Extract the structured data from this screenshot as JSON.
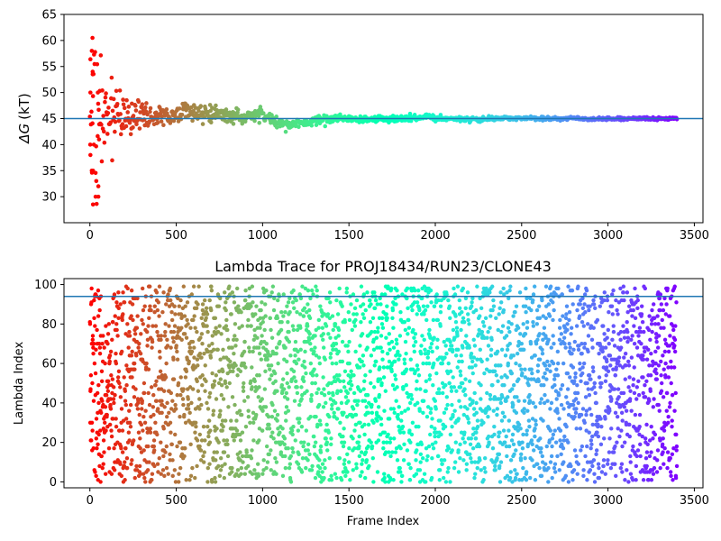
{
  "chart_data": [
    {
      "type": "scatter",
      "title": "",
      "xlabel": "",
      "ylabel_symbol": "ΔG",
      "ylabel_unit": "(kT)",
      "xlim": [
        -150,
        3550
      ],
      "ylim": [
        25,
        65
      ],
      "xticks": [
        "0",
        "500",
        "1000",
        "1500",
        "2000",
        "2500",
        "3000",
        "3500"
      ],
      "yticks": [
        "30",
        "35",
        "40",
        "45",
        "50",
        "55",
        "60",
        "65"
      ],
      "hline": 45.0,
      "hline_color": "#1f77b4",
      "colormap": "rainbow",
      "n_frames": 3400,
      "grid": false,
      "convergence": {
        "mean": 45.0,
        "early_values": [
          60.5,
          58.0,
          54.0,
          53.5,
          50.0,
          50.0,
          41.0,
          40.0,
          40.0,
          38.0,
          35.0,
          35.0,
          33.0,
          32.0,
          30.0,
          30.0,
          28.5
        ],
        "envelope": [
          [
            0,
            15.0
          ],
          [
            100,
            6.0
          ],
          [
            200,
            3.5
          ],
          [
            400,
            2.0
          ],
          [
            700,
            1.5
          ],
          [
            1000,
            1.0
          ],
          [
            1500,
            0.6
          ],
          [
            2500,
            0.3
          ],
          [
            3400,
            0.2
          ]
        ]
      }
    },
    {
      "type": "scatter",
      "title": "Lambda Trace for PROJ18434/RUN23/CLONE43",
      "xlabel": "Frame Index",
      "ylabel": "Lambda Index",
      "xlim": [
        -150,
        3550
      ],
      "ylim": [
        -3,
        103
      ],
      "xticks": [
        "0",
        "500",
        "1000",
        "1500",
        "2000",
        "2500",
        "3000",
        "3500"
      ],
      "yticks": [
        "0",
        "20",
        "40",
        "60",
        "80",
        "100"
      ],
      "hline": 94,
      "hline_color": "#1f77b4",
      "colormap": "rainbow",
      "n_frames": 3400,
      "y_range": [
        0,
        99
      ],
      "grid": false
    }
  ]
}
